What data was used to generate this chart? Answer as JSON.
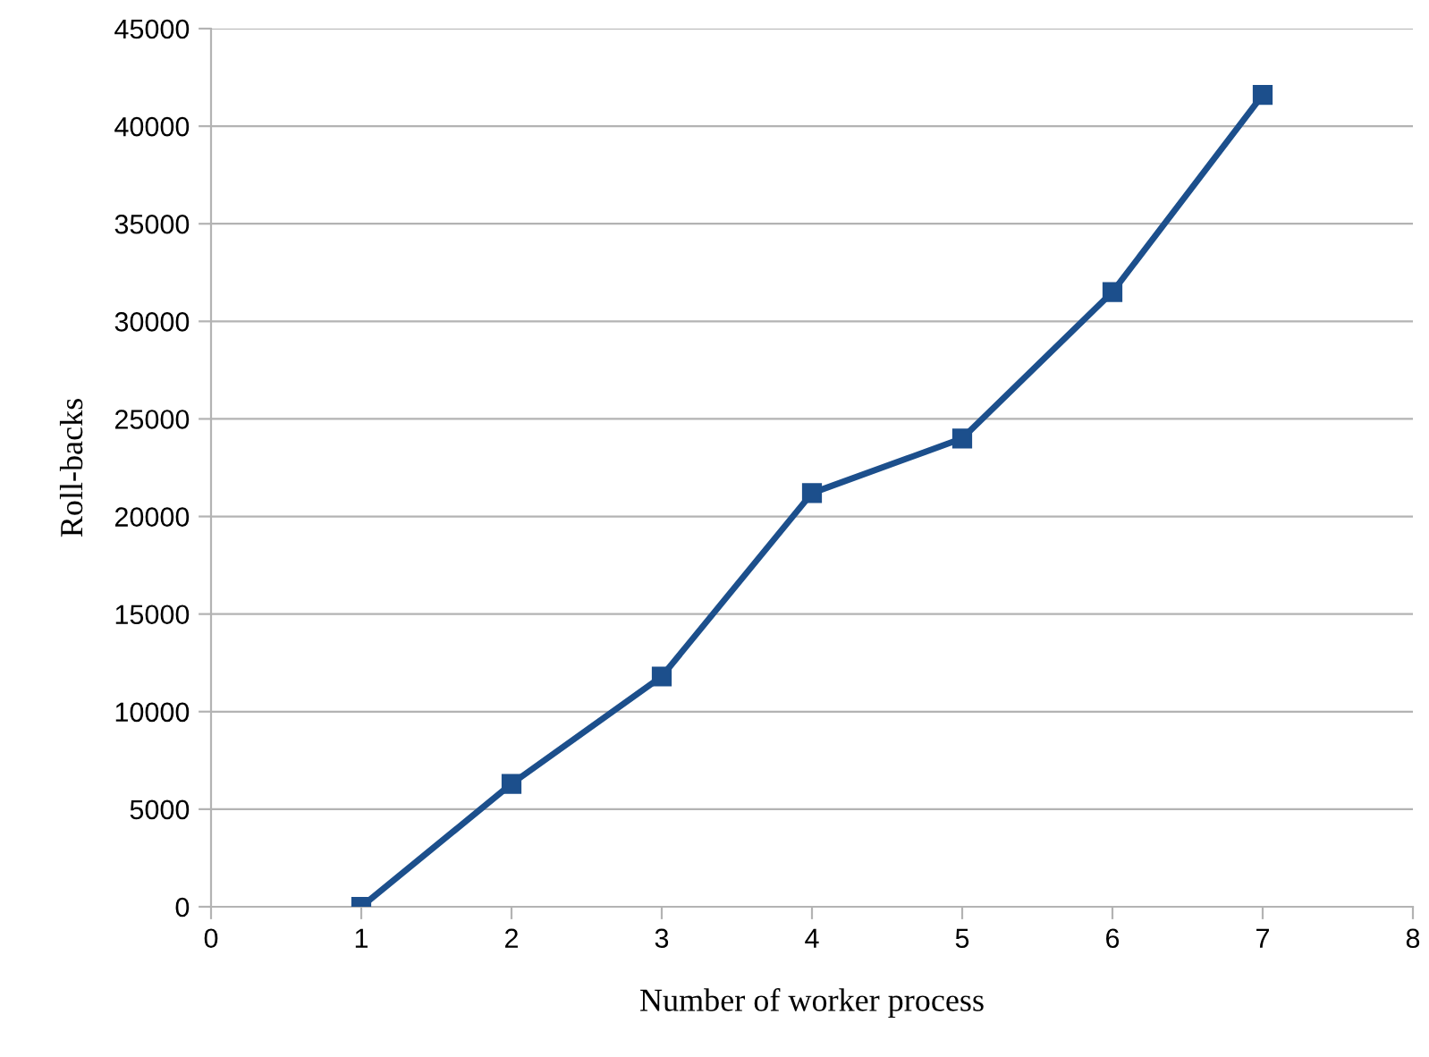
{
  "chart_data": {
    "type": "line",
    "xlabel": "Number of worker process",
    "ylabel": "Roll-backs",
    "x": [
      1,
      2,
      3,
      4,
      5,
      6,
      7
    ],
    "series": [
      {
        "color": "#1c4f8c",
        "values": [
          0,
          6300,
          11800,
          21200,
          24000,
          31500,
          41600
        ]
      }
    ],
    "xlim": [
      0,
      8
    ],
    "xticks": [
      0,
      1,
      2,
      3,
      4,
      5,
      6,
      7,
      8
    ],
    "ylim": [
      0,
      45000
    ],
    "yticks": [
      0,
      5000,
      10000,
      15000,
      20000,
      25000,
      30000,
      35000,
      40000,
      45000
    ],
    "grid": "y",
    "marker": "square",
    "line_style": "solid"
  }
}
